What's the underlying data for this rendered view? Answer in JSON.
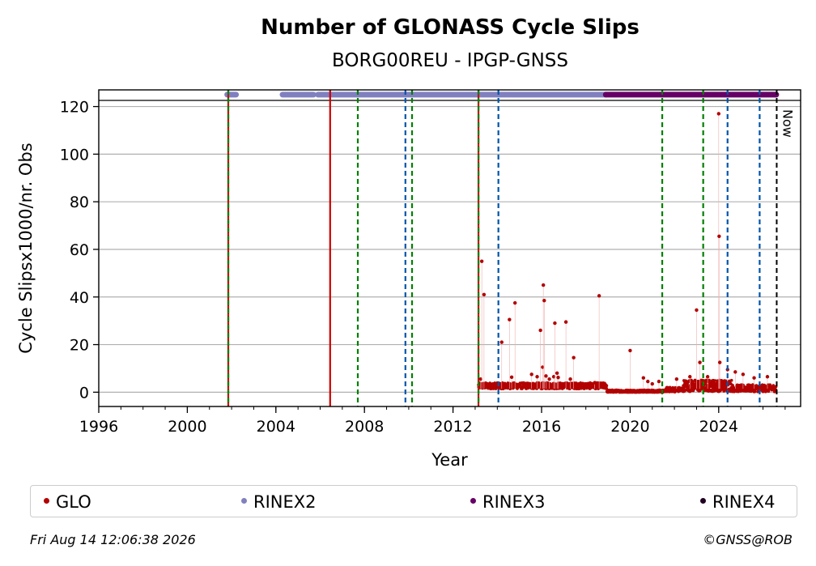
{
  "chart_data": {
    "type": "scatter",
    "title": "Number of GLONASS Cycle Slips",
    "subtitle": "BORG00REU - IPGP-GNSS",
    "xlabel": "Year",
    "ylabel": "Cycle Slipsx1000/nr. Obs",
    "xlim": [
      1996,
      2027.7
    ],
    "ylim": [
      -6,
      127
    ],
    "xticks": [
      "1996",
      "2000",
      "2004",
      "2008",
      "2012",
      "2016",
      "2020",
      "2024"
    ],
    "xtick_values": [
      1996,
      2000,
      2004,
      2008,
      2012,
      2016,
      2020,
      2024
    ],
    "yticks": [
      "0",
      "20",
      "40",
      "60",
      "80",
      "100",
      "120"
    ],
    "ytick_values": [
      0,
      20,
      40,
      60,
      80,
      100,
      120
    ],
    "grid": "horizontal",
    "legend_placement": "bottom",
    "now_label": "Now",
    "now_year": 2026.62,
    "series": [
      {
        "name": "GLO",
        "color": "#b30000",
        "outliers": [
          [
            2013.25,
            5.5
          ],
          [
            2013.3,
            55
          ],
          [
            2013.4,
            41
          ],
          [
            2014.2,
            21
          ],
          [
            2014.55,
            30.5
          ],
          [
            2014.65,
            6.3
          ],
          [
            2014.8,
            37.5
          ],
          [
            2015.55,
            7.5
          ],
          [
            2015.8,
            6.5
          ],
          [
            2015.95,
            26
          ],
          [
            2016.05,
            10.5
          ],
          [
            2016.08,
            45
          ],
          [
            2016.12,
            38.5
          ],
          [
            2016.2,
            6.8
          ],
          [
            2016.35,
            5.5
          ],
          [
            2016.55,
            6.5
          ],
          [
            2016.6,
            29
          ],
          [
            2016.7,
            8
          ],
          [
            2016.75,
            6.2
          ],
          [
            2017.1,
            29.5
          ],
          [
            2017.3,
            5.5
          ],
          [
            2017.45,
            14.5
          ],
          [
            2018.4,
            4
          ],
          [
            2018.6,
            40.5
          ],
          [
            2020.0,
            17.5
          ],
          [
            2020.6,
            6
          ],
          [
            2020.8,
            4.5
          ],
          [
            2021.0,
            3.5
          ],
          [
            2021.3,
            4.5
          ],
          [
            2022.1,
            5.5
          ],
          [
            2022.7,
            6.5
          ],
          [
            2023.0,
            34.5
          ],
          [
            2023.15,
            12.5
          ],
          [
            2023.5,
            6.5
          ],
          [
            2024.0,
            117
          ],
          [
            2024.02,
            65.5
          ],
          [
            2024.05,
            12.5
          ],
          [
            2024.4,
            9.5
          ],
          [
            2024.75,
            8.5
          ],
          [
            2025.1,
            7.5
          ],
          [
            2025.6,
            6
          ],
          [
            2026.2,
            6.5
          ]
        ],
        "baseline_segments": [
          {
            "from": 2013.15,
            "to": 2018.95,
            "value": 2.3,
            "spread": 1.3
          },
          {
            "from": 2018.95,
            "to": 2021.6,
            "value": 0.2,
            "spread": 0.6
          },
          {
            "from": 2021.6,
            "to": 2022.4,
            "value": 0.8,
            "spread": 1.0
          },
          {
            "from": 2022.4,
            "to": 2024.6,
            "value": 2.0,
            "spread": 2.5
          },
          {
            "from": 2024.6,
            "to": 2026.6,
            "value": 1.2,
            "spread": 1.5
          }
        ]
      },
      {
        "name": "RINEX2",
        "color": "#8080c0",
        "y_level": 125,
        "segments": [
          [
            2001.8,
            2002.2
          ],
          [
            2004.3,
            2005.7
          ],
          [
            2005.9,
            2018.9
          ]
        ]
      },
      {
        "name": "RINEX3",
        "color": "#660066",
        "y_level": 125,
        "segments": [
          [
            2018.9,
            2026.6
          ]
        ]
      },
      {
        "name": "RINEX4",
        "color": "#200020",
        "y_level": 125,
        "segments": []
      }
    ],
    "event_lines": [
      {
        "x": 2001.85,
        "color": "#cc0000",
        "style": "solid"
      },
      {
        "x": 2001.85,
        "color": "#008000",
        "style": "dashed"
      },
      {
        "x": 2006.45,
        "color": "#cc0000",
        "style": "solid"
      },
      {
        "x": 2007.7,
        "color": "#008000",
        "style": "dashed"
      },
      {
        "x": 2009.85,
        "color": "#0055aa",
        "style": "dashed"
      },
      {
        "x": 2010.15,
        "color": "#008000",
        "style": "dashed"
      },
      {
        "x": 2013.15,
        "color": "#cc0000",
        "style": "solid"
      },
      {
        "x": 2013.15,
        "color": "#008000",
        "style": "dashed"
      },
      {
        "x": 2014.05,
        "color": "#0055aa",
        "style": "dashed"
      },
      {
        "x": 2021.45,
        "color": "#008000",
        "style": "dashed"
      },
      {
        "x": 2023.3,
        "color": "#008000",
        "style": "dashed"
      },
      {
        "x": 2024.4,
        "color": "#0055aa",
        "style": "dashed"
      },
      {
        "x": 2025.85,
        "color": "#0055aa",
        "style": "dashed"
      }
    ]
  },
  "legend": [
    {
      "label": "GLO",
      "color": "#b30000"
    },
    {
      "label": "RINEX2",
      "color": "#8080c0"
    },
    {
      "label": "RINEX3",
      "color": "#660066"
    },
    {
      "label": "RINEX4",
      "color": "#200020"
    }
  ],
  "footer": {
    "timestamp": "Fri Aug 14 12:06:38 2026",
    "copyright": "©GNSS@ROB"
  }
}
